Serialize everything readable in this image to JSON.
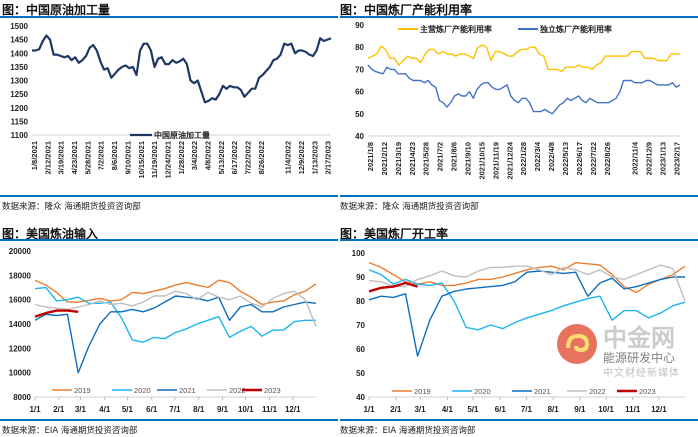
{
  "panels": [
    {
      "title": "图：中国原油加工量",
      "source": "数据来源：隆众    海通期货投资咨询部"
    },
    {
      "title": "图：中国炼厂产能利用率",
      "source": "数据来源：隆众    海通期货投资咨询部"
    },
    {
      "title": "图：美国炼油输入",
      "source": "数据来源：EIA    海通期货投资咨询部"
    },
    {
      "title": "图：美国炼厂开工率",
      "source": "数据来源：EIA    海通期货投资咨询部"
    }
  ],
  "watermark": {
    "brand": "中金网",
    "line1": "能源研发中心",
    "line2": "中文财经新媒体"
  },
  "chart_data": [
    {
      "type": "line",
      "title": "图：中国原油加工量",
      "ylim": [
        1100,
        1500
      ],
      "yticks": [
        1100,
        1150,
        1200,
        1250,
        1300,
        1350,
        1400,
        1450,
        1500
      ],
      "legend": "bottom",
      "xticks": [
        "1/8/2021",
        "2/12/2021",
        "3/19/2021",
        "4/23/2021",
        "5/28/2021",
        "7/2/2021",
        "8/6/2021",
        "9/10/2021",
        "10/15/2021",
        "11/19/2021",
        "12/24/2021",
        "1/28/2022",
        "3/4/2022",
        "4/8/2022",
        "5/13/2022",
        "6/17/2022",
        "7/22/2022",
        "8/26/2022",
        "",
        "11/4/2022",
        "12/9/2022",
        "1/13/2023",
        "2/17/2023"
      ],
      "series": [
        {
          "name": "中国原油加工量",
          "color": "#1F3864",
          "values": [
            1410,
            1410,
            1415,
            1445,
            1465,
            1450,
            1395,
            1395,
            1390,
            1385,
            1390,
            1375,
            1385,
            1365,
            1375,
            1390,
            1420,
            1430,
            1410,
            1370,
            1340,
            1345,
            1310,
            1325,
            1340,
            1350,
            1355,
            1345,
            1350,
            1320,
            1410,
            1435,
            1435,
            1410,
            1350,
            1380,
            1385,
            1360,
            1360,
            1375,
            1365,
            1370,
            1380,
            1360,
            1300,
            1290,
            1300,
            1260,
            1220,
            1225,
            1235,
            1230,
            1250,
            1280,
            1270,
            1280,
            1275,
            1275,
            1265,
            1240,
            1255,
            1270,
            1270,
            1310,
            1320,
            1335,
            1350,
            1375,
            1380,
            1395,
            1435,
            1430,
            1435,
            1400,
            1410,
            1410,
            1405,
            1395,
            1390,
            1410,
            1455,
            1445,
            1450,
            1455
          ]
        }
      ]
    },
    {
      "type": "line",
      "title": "图：中国炼厂产能利用率",
      "ylim": [
        40,
        90
      ],
      "yticks": [
        40,
        50,
        60,
        70,
        80,
        90
      ],
      "legend": "top",
      "xticks": [
        "2021/1/8",
        "2021/2/12",
        "2021/3/19",
        "2021/4/23",
        "2021/5/28",
        "2021/7/2",
        "2021/8/6",
        "2021/9/10",
        "2021/10/15",
        "2021/11/19",
        "2021/12/24",
        "2022/1/28",
        "2022/3/4",
        "2022/4/8",
        "2022/5/13",
        "2022/6/17",
        "2022/7/22",
        "2022/8/26",
        "",
        "2022/11/4",
        "2022/12/9",
        "2023/1/13",
        "2023/2/17"
      ],
      "series": [
        {
          "name": "主营炼厂产能利用率",
          "color": "#FFC000",
          "values": [
            75,
            76,
            77,
            80.5,
            79,
            75,
            75,
            72,
            74,
            76,
            75,
            75,
            73,
            77,
            79,
            79,
            77,
            78,
            77,
            77,
            76,
            77,
            77,
            76,
            75,
            80,
            81,
            80,
            74,
            78,
            78,
            77,
            76,
            76,
            78,
            79,
            79,
            80,
            80,
            77,
            76,
            70,
            70,
            70,
            69,
            71,
            71,
            71,
            72,
            71,
            71,
            70,
            72,
            73,
            76,
            76,
            76,
            76,
            76,
            76,
            78,
            78,
            78,
            75,
            75,
            75,
            74,
            74,
            74,
            77,
            77,
            77
          ]
        },
        {
          "name": "独立炼厂产能利用率",
          "color": "#4472C4",
          "values": [
            72,
            70,
            69,
            68.5,
            68,
            71,
            70,
            70,
            68,
            68,
            68,
            66,
            65,
            65,
            65,
            64,
            65,
            63,
            62,
            56,
            55,
            53,
            55,
            58,
            59,
            58,
            58,
            60,
            57,
            61,
            63,
            64,
            64,
            62,
            61,
            61,
            62,
            63,
            58,
            56,
            55,
            57,
            57,
            55,
            51,
            51,
            51,
            52,
            51,
            50,
            52,
            54,
            55,
            57,
            56,
            57,
            58,
            56,
            55,
            57,
            56,
            55,
            55,
            55,
            55,
            56,
            57,
            60,
            65,
            65,
            65,
            64,
            64,
            64,
            65,
            65,
            64,
            63,
            63,
            63,
            63,
            64,
            62,
            63
          ]
        }
      ]
    },
    {
      "type": "line",
      "title": "图：美国炼油输入",
      "ylim": [
        8000,
        20000
      ],
      "yticks": [
        8000,
        10000,
        12000,
        14000,
        16000,
        18000,
        20000
      ],
      "legend": "bottom",
      "xticks": [
        "1/1",
        "2/1",
        "3/1",
        "4/1",
        "5/1",
        "6/1",
        "7/1",
        "8/1",
        "9/1",
        "10/1",
        "11/1",
        "12/1"
      ],
      "series": [
        {
          "name": "2019",
          "color": "#ED7D31",
          "values": [
            17600,
            17200,
            16600,
            15800,
            15800,
            15950,
            16100,
            15900,
            16000,
            16600,
            16500,
            16700,
            16900,
            17200,
            17400,
            17200,
            17000,
            17600,
            17400,
            16700,
            16200,
            15600,
            15800,
            15900,
            16400,
            16700,
            17300
          ]
        },
        {
          "name": "2020",
          "color": "#1CB5F0",
          "values": [
            16900,
            17000,
            15900,
            16000,
            16200,
            15700,
            15700,
            15800,
            14500,
            12700,
            12500,
            12900,
            12800,
            13300,
            13600,
            14000,
            14300,
            14600,
            12900,
            13400,
            13800,
            13000,
            13500,
            13500,
            14200,
            14300,
            14300
          ]
        },
        {
          "name": "2021",
          "color": "#0E6EBF",
          "values": [
            14300,
            14800,
            14700,
            14800,
            10000,
            12200,
            14000,
            15000,
            15000,
            15200,
            15000,
            15300,
            15800,
            16300,
            16200,
            16100,
            15900,
            16200,
            14300,
            15400,
            15600,
            15000,
            15000,
            15400,
            15600,
            15800,
            15700
          ]
        },
        {
          "name": "2022",
          "color": "#BFBFBF",
          "values": [
            15600,
            15400,
            15300,
            15200,
            15400,
            15600,
            15900,
            15600,
            15700,
            15500,
            15800,
            16300,
            16300,
            16700,
            16500,
            16000,
            16600,
            16200,
            16000,
            16300,
            15700,
            15400,
            16100,
            16500,
            16700,
            16000,
            13800
          ]
        },
        {
          "name": "2023",
          "color": "#C00000",
          "values": [
            14600,
            14900,
            15100,
            15100,
            15000
          ]
        }
      ]
    },
    {
      "type": "line",
      "title": "图：美国炼厂开工率",
      "ylim": [
        40,
        100
      ],
      "yticks": [
        40,
        50,
        60,
        70,
        80,
        90,
        100
      ],
      "legend": "bottom",
      "xticks": [
        "1/1",
        "2/1",
        "3/1",
        "4/1",
        "5/1",
        "6/1",
        "7/1",
        "8/1",
        "9/1",
        "10/1",
        "11/1",
        "12/1"
      ],
      "series": [
        {
          "name": "2019",
          "color": "#ED7D31",
          "values": [
            96,
            94,
            91,
            88,
            87,
            88,
            86.5,
            86.5,
            87.5,
            89,
            89,
            90,
            91.5,
            93,
            94,
            94.5,
            93,
            96,
            95.5,
            95,
            91,
            86,
            83.5,
            87,
            89,
            91,
            94.5
          ]
        },
        {
          "name": "2020",
          "color": "#1CB5F0",
          "values": [
            93,
            91,
            87,
            89,
            87,
            86.5,
            87.5,
            80,
            69,
            68,
            70,
            68.5,
            71,
            73,
            74.5,
            76,
            78,
            79.5,
            81,
            82,
            72,
            76,
            76,
            73,
            75,
            78,
            79.5
          ]
        },
        {
          "name": "2021",
          "color": "#0E6EBF",
          "values": [
            80.5,
            82,
            81.5,
            83,
            57,
            72,
            82,
            84,
            85,
            85.5,
            86,
            86.5,
            88,
            92,
            92.5,
            92,
            91.5,
            92,
            82,
            87.5,
            89.5,
            85,
            86,
            87.5,
            89,
            90,
            90
          ]
        },
        {
          "name": "2022",
          "color": "#BFBFBF",
          "values": [
            88.5,
            88,
            86,
            86,
            89,
            90.5,
            92.5,
            90.5,
            90,
            92.5,
            94,
            94,
            94.5,
            94.5,
            93,
            91,
            94,
            93,
            91,
            93,
            90,
            89,
            91,
            93,
            95,
            93.5,
            80
          ]
        },
        {
          "name": "2023",
          "color": "#C00000",
          "values": [
            84,
            85.5,
            86,
            87.5,
            86
          ]
        }
      ]
    }
  ]
}
